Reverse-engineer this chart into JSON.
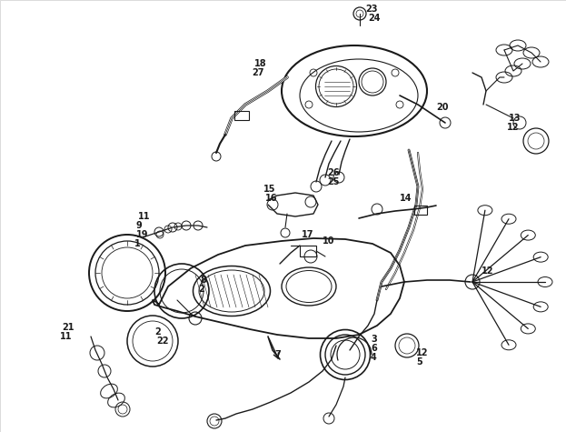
{
  "bg_color": "#ffffff",
  "line_color": "#1a1a1a",
  "figsize": [
    6.23,
    4.75
  ],
  "dpi": 100,
  "image_data": "auto"
}
